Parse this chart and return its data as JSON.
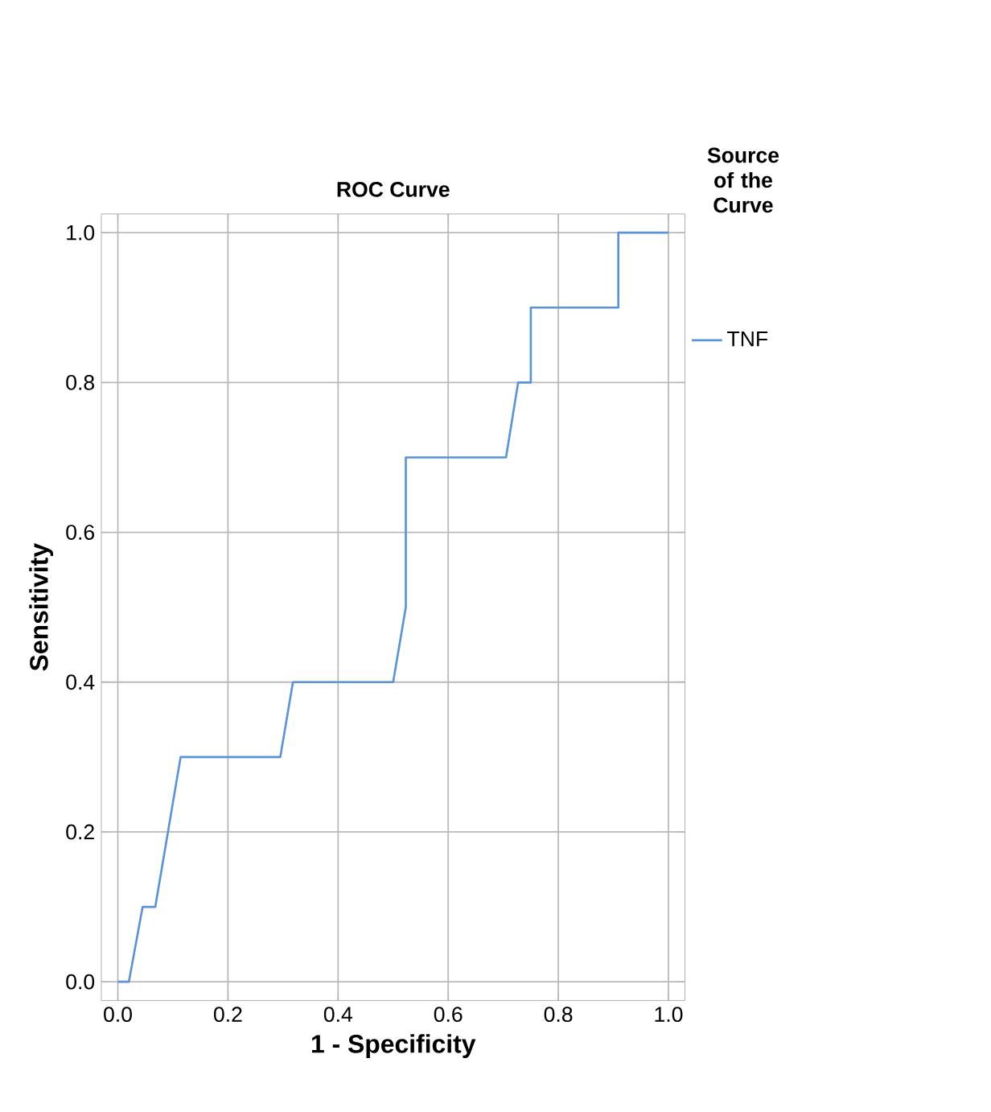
{
  "chart_data": {
    "type": "line",
    "title": "ROC Curve",
    "xlabel": "1 - Specificity",
    "ylabel": "Sensitivity",
    "legend_title": "Source of the Curve",
    "x": [
      0,
      0.02,
      0.045,
      0.068,
      0.114,
      0.295,
      0.318,
      0.5,
      0.523,
      0.523,
      0.705,
      0.727,
      0.75,
      0.75,
      0.909,
      0.909,
      1.0
    ],
    "series": [
      {
        "name": "TNF",
        "color": "#5b93d8",
        "values": [
          0,
          0,
          0.1,
          0.1,
          0.3,
          0.3,
          0.4,
          0.4,
          0.5,
          0.7,
          0.7,
          0.8,
          0.8,
          0.9,
          0.9,
          1.0,
          1.0
        ]
      }
    ],
    "xlim": [
      -0.03,
      1.03
    ],
    "ylim": [
      -0.025,
      1.025
    ],
    "xticks": [
      {
        "value": 0,
        "label": "0.0"
      },
      0.2,
      0.4,
      0.6,
      0.8,
      {
        "value": 1,
        "label": "1.0"
      }
    ],
    "yticks": [
      {
        "value": 0,
        "label": "0.0"
      },
      0.2,
      0.4,
      0.6,
      0.8,
      {
        "value": 1,
        "label": "1.0"
      }
    ],
    "grid": true,
    "legend": "top right",
    "marker": "none",
    "line_style": "solid"
  }
}
